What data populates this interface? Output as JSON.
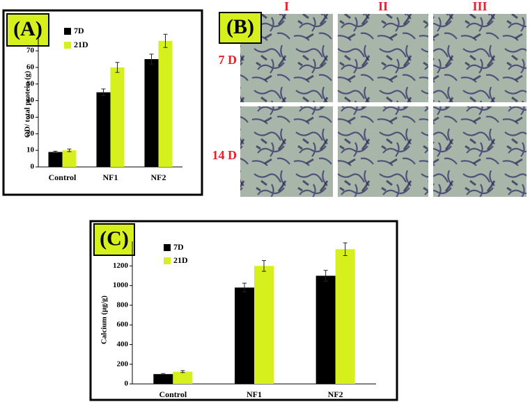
{
  "chart_data": [
    {
      "type": "bar",
      "panel_label": "(A)",
      "y_label": "OD/ total protein (g)",
      "categories": [
        "Control",
        "NF1",
        "NF2"
      ],
      "series": [
        {
          "name": "7D",
          "color": "#000000",
          "values": [
            9,
            45,
            65
          ],
          "errors": [
            0.5,
            2,
            3
          ]
        },
        {
          "name": "21D",
          "color": "#d6f01e",
          "values": [
            10,
            60,
            76
          ],
          "errors": [
            0.8,
            3,
            4
          ]
        }
      ],
      "ylim": [
        0,
        78
      ],
      "yticks": [
        0,
        10,
        20,
        30,
        40,
        50,
        60,
        70
      ]
    },
    {
      "type": "bar",
      "panel_label": "(C)",
      "y_label": "Calcium (μg/g)",
      "categories": [
        "Control",
        "NF1",
        "NF2"
      ],
      "series": [
        {
          "name": "7D",
          "color": "#000000",
          "values": [
            100,
            980,
            1100
          ],
          "errors": [
            5,
            45,
            55
          ]
        },
        {
          "name": "21D",
          "color": "#d6f01e",
          "values": [
            125,
            1200,
            1370
          ],
          "errors": [
            10,
            55,
            65
          ]
        }
      ],
      "ylim": [
        0,
        1450
      ],
      "yticks": [
        0,
        200,
        400,
        600,
        800,
        1000,
        1200
      ]
    }
  ],
  "panel_b": {
    "panel_label": "(B)",
    "columns": [
      "I",
      "II",
      "III"
    ],
    "rows": [
      "7 D",
      "14 D"
    ]
  }
}
